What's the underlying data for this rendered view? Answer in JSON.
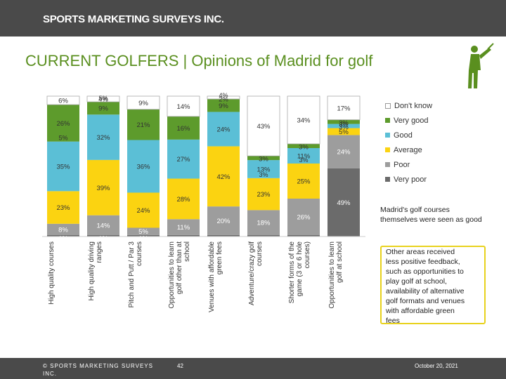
{
  "header": {
    "brand": "SPORTS MARKETING SURVEYS INC."
  },
  "title": "CURRENT GOLFERS | Opinions of Madrid for golf",
  "colors": {
    "very_good": "#5d9b2c",
    "good": "#5bbfd6",
    "average": "#fbd311",
    "poor": "#9d9d9d",
    "very_poor": "#6b6b6b",
    "dont_know": "#ffffff",
    "accent": "#5a8f1f"
  },
  "chart_data": {
    "type": "bar",
    "stacked": true,
    "categories": [
      "High quality courses",
      "High quality driving ranges",
      "Pitch and Putt / Par 3 courses",
      "Opportunities to learn golf other than at school",
      "Venues with affordable green fees",
      "Adventure/crazy golf courses",
      "Shorter forms of the game (3 or 6 hole courses)",
      "Opportunities to learn golf at school"
    ],
    "series": [
      {
        "name": "Very poor",
        "values": [
          1,
          1,
          1,
          1,
          1,
          1,
          1,
          49
        ]
      },
      {
        "name": "Poor",
        "values": [
          8,
          14,
          5,
          11,
          20,
          18,
          26,
          24
        ]
      },
      {
        "name": "Average",
        "values": [
          23,
          39,
          24,
          28,
          42,
          23,
          25,
          5
        ]
      },
      {
        "name": "Good",
        "values": [
          35,
          32,
          36,
          27,
          24,
          13,
          11,
          3
        ]
      },
      {
        "name": "Very good",
        "values": [
          26,
          9,
          21,
          16,
          9,
          3,
          3,
          3
        ]
      },
      {
        "name": "Don't know",
        "values": [
          6,
          4,
          9,
          14,
          2,
          43,
          34,
          17
        ]
      }
    ],
    "bar_labels": [
      [
        "1%",
        "8%",
        "23%",
        "35%",
        "26%",
        "6%"
      ],
      [
        "1%",
        "14%",
        "39%",
        "32%",
        "9%",
        "4%"
      ],
      [
        "1%",
        "5%",
        "24%",
        "36%",
        "21%",
        "9%"
      ],
      [
        "",
        "11%",
        "28%",
        "27%",
        "16%",
        "14%"
      ],
      [
        "",
        "20%",
        "42%",
        "24%",
        "9%",
        "2%"
      ],
      [
        "",
        "18%",
        "23%",
        "13%",
        "3%",
        "43%"
      ],
      [
        "",
        "26%",
        "25%",
        "11%",
        "3%",
        "34%"
      ],
      [
        "49%",
        "24%",
        "5%",
        "3%",
        "3%",
        "17%"
      ]
    ],
    "extra_labels": [
      "5%",
      "5%",
      "4%",
      "3%",
      "3%",
      "3%"
    ],
    "ylim": [
      0,
      100
    ],
    "legend": [
      "Don't know",
      "Very good",
      "Good",
      "Average",
      "Poor",
      "Very poor"
    ],
    "legend_position": "right"
  },
  "callouts": {
    "first": "Madrid's golf courses themselves were seen as good",
    "second_lines": [
      "Other areas received",
      "less positive feedback,",
      "such as opportunities to",
      "play golf at school,",
      "availability of alternative",
      "golf formats and venues",
      "with affordable green",
      "fees"
    ]
  },
  "footer": {
    "copyright": "© SPORTS MARKETING SURVEYS INC.",
    "page": "42",
    "date": "October 20, 2021"
  }
}
